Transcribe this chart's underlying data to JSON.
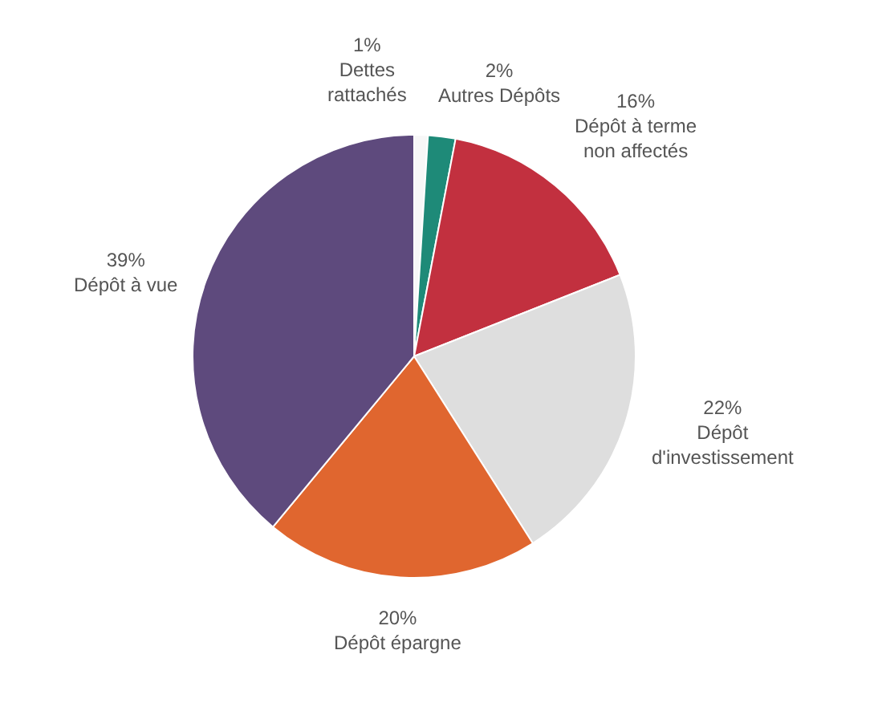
{
  "chart_data": {
    "type": "pie",
    "categories": [
      "Dettes rattachés",
      "Autres Dépôts",
      "Dépôt à terme non affectés",
      "Dépôt d'investissement",
      "Dépôt épargne",
      "Dépôt à vue"
    ],
    "values": [
      1,
      2,
      16,
      22,
      20,
      39
    ],
    "value_labels": [
      "1%",
      "2%",
      "16%",
      "22%",
      "20%",
      "39%"
    ],
    "colors": [
      "#f7f7f7",
      "#1e8a78",
      "#c2303f",
      "#dedede",
      "#e0662f",
      "#5e4a7d"
    ],
    "legend": false
  }
}
